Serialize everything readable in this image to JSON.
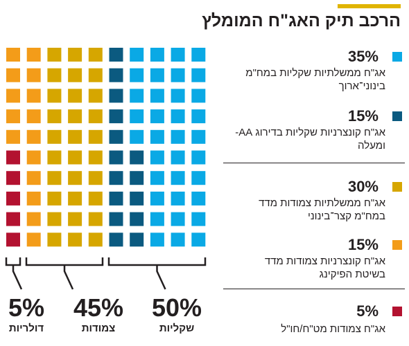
{
  "title": "הרכב תיק האג\"ח המומלץ",
  "colors": {
    "accent": "#e0b400",
    "light_blue": "#0aa9e5",
    "dark_blue": "#0b5a80",
    "yellow": "#d6a600",
    "orange": "#f39c19",
    "red": "#b31230",
    "dark": "#231f20"
  },
  "legend": [
    {
      "pct": "35%",
      "text": "אג\"ח ממשלתיות שקליות במח\"מ בינוני־ארוך",
      "color": "#0aa9e5"
    },
    {
      "pct": "15%",
      "text": "אג\"ח קונצרניות שקליות בדירוג AA- ומעלה",
      "color": "#0b5a80"
    },
    {
      "pct": "30%",
      "text": "אג\"ח ממשלתיות צמודות מדד במח\"מ קצר־בינוני",
      "color": "#d6a600"
    },
    {
      "pct": "15%",
      "text": "אג\"ח קונצרניות צמודות מדד בשיטת הפיקינג",
      "color": "#f39c19"
    },
    {
      "pct": "5%",
      "text": "אג\"ח צמודות מט\"ח/חו\"ל",
      "color": "#b31230"
    }
  ],
  "groups": [
    {
      "value": "5%",
      "label": "דולריות"
    },
    {
      "value": "45%",
      "label": "צמודות"
    },
    {
      "value": "50%",
      "label": "שקליות"
    }
  ],
  "chart_data": {
    "type": "waffle",
    "title": "הרכב תיק האג\"ח המומלץ",
    "total_squares": 100,
    "series": [
      {
        "name": "אג\"ח ממשלתיות שקליות במח\"מ בינוני־ארוך",
        "value": 35,
        "color": "#0aa9e5"
      },
      {
        "name": "אג\"ח קונצרניות שקליות בדירוג AA- ומעלה",
        "value": 15,
        "color": "#0b5a80"
      },
      {
        "name": "אג\"ח ממשלתיות צמודות מדד במח\"מ קצר־בינוני",
        "value": 30,
        "color": "#d6a600"
      },
      {
        "name": "אג\"ח קונצרניות צמודות מדד בשיטת הפיקינג",
        "value": 15,
        "color": "#f39c19"
      },
      {
        "name": "אג\"ח צמודות מט\"ח/חו\"ל",
        "value": 5,
        "color": "#b31230"
      }
    ],
    "groups": [
      {
        "name": "שקליות",
        "value": 50
      },
      {
        "name": "צמודות",
        "value": 45
      },
      {
        "name": "דולריות",
        "value": 5
      }
    ]
  }
}
